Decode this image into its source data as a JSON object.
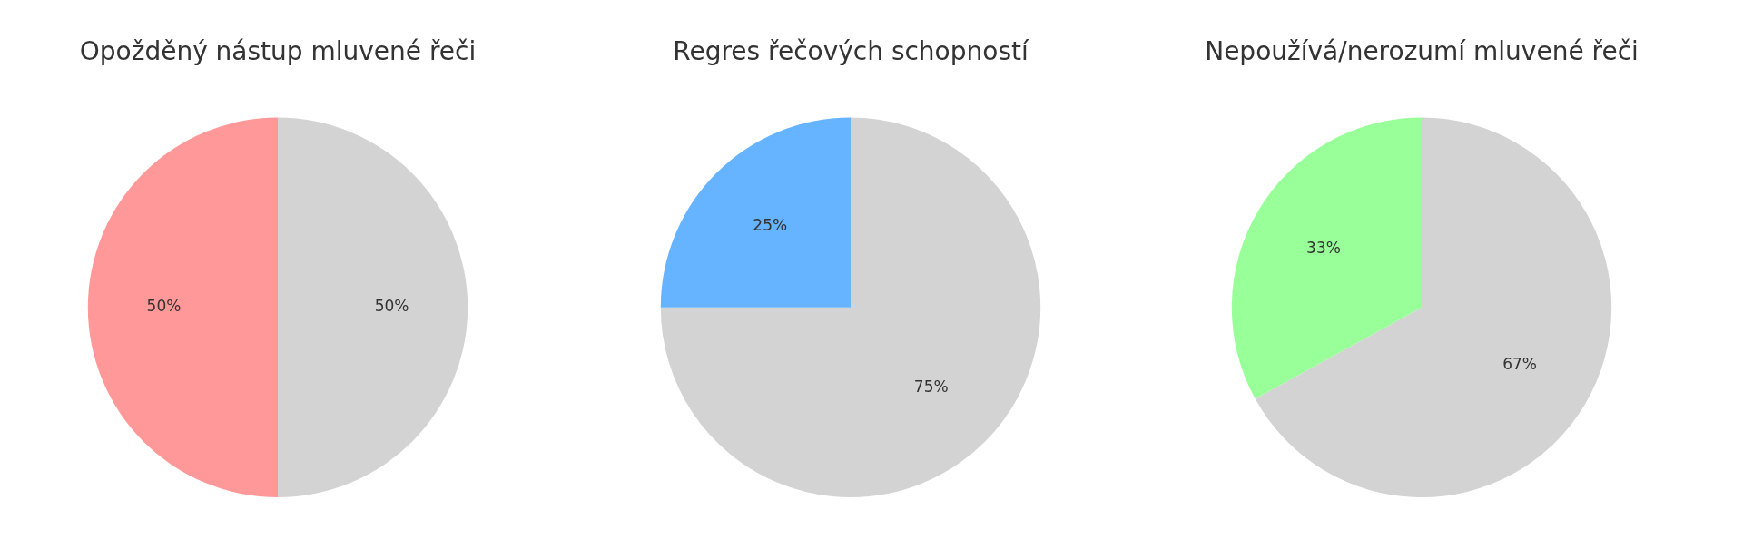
{
  "chart_data": [
    {
      "type": "pie",
      "title": "Opožděný nástup mluvené řeči",
      "categories": [
        null,
        null
      ],
      "values": [
        50,
        50
      ],
      "colors": [
        "#ff9999",
        "#d3d3d3"
      ],
      "value_labels": [
        "50%",
        "50%"
      ]
    },
    {
      "type": "pie",
      "title": "Regres řečových schopností",
      "categories": [
        null,
        null
      ],
      "values": [
        25,
        75
      ],
      "colors": [
        "#66b3ff",
        "#d3d3d3"
      ],
      "value_labels": [
        "25%",
        "75%"
      ]
    },
    {
      "type": "pie",
      "title": "Nepoužívá/nerozumí mluvené řeči",
      "categories": [
        null,
        null
      ],
      "values": [
        33,
        67
      ],
      "colors": [
        "#99ff99",
        "#d3d3d3"
      ],
      "value_labels": [
        "33%",
        "67%"
      ]
    }
  ]
}
